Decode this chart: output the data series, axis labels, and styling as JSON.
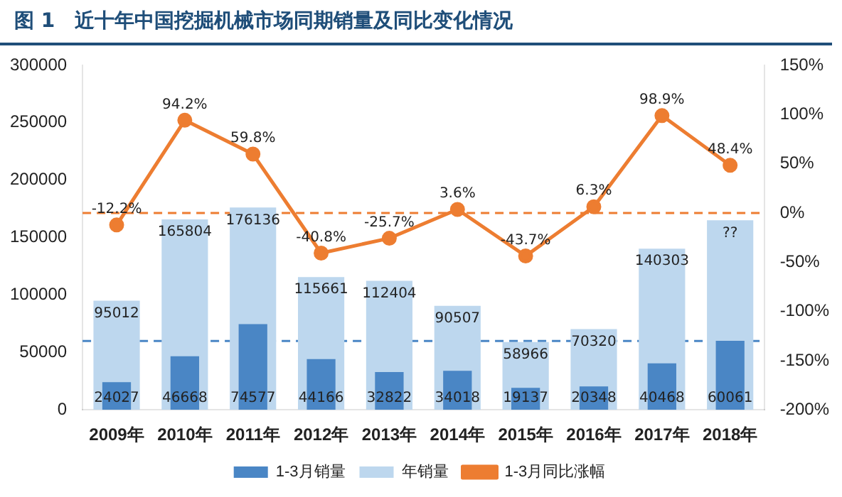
{
  "chart_data": {
    "type": "bar",
    "title": "图 1　近十年中国挖掘机械市场同期销量及同比变化情况",
    "categories": [
      "2009年",
      "2010年",
      "2011年",
      "2012年",
      "2013年",
      "2014年",
      "2015年",
      "2016年",
      "2017年",
      "2018年"
    ],
    "series": [
      {
        "name": "1-3月销量",
        "color": "#4a86c5",
        "values": [
          24027,
          46668,
          74577,
          44166,
          32822,
          34018,
          19137,
          20348,
          40468,
          60061
        ],
        "value_labels": [
          "24027",
          "46668",
          "74577",
          "44166",
          "32822",
          "34018",
          "19137",
          "20348",
          "40468",
          "60061"
        ]
      },
      {
        "name": "年销量",
        "color": "#bdd7ee",
        "values": [
          95012,
          165804,
          176136,
          115661,
          112404,
          90507,
          58966,
          70320,
          140303,
          165000
        ],
        "value_labels": [
          "95012",
          "165804",
          "176136",
          "115661",
          "112404",
          "90507",
          "58966",
          "70320",
          "140303",
          "??"
        ]
      },
      {
        "name": "1-3月同比涨幅",
        "type": "line",
        "axis": "y2",
        "color": "#ed7d31",
        "values": [
          -12.2,
          94.2,
          59.8,
          -40.8,
          -25.7,
          3.6,
          -43.7,
          6.3,
          98.9,
          48.4
        ],
        "value_labels": [
          "-12.2%",
          "94.2%",
          "59.8%",
          "-40.8%",
          "-25.7%",
          "3.6%",
          "-43.7%",
          "6.3%",
          "98.9%",
          "48.4%"
        ]
      }
    ],
    "ylim": [
      0,
      300000
    ],
    "yticks": [
      0,
      50000,
      100000,
      150000,
      200000,
      250000,
      300000
    ],
    "y2lim": [
      -200,
      150
    ],
    "y2ticks": [
      {
        "value": -200,
        "label": "-200%"
      },
      {
        "value": -150,
        "label": "-150%"
      },
      {
        "value": -100,
        "label": "-100%"
      },
      {
        "value": -50,
        "label": "-50%"
      },
      {
        "value": 0,
        "label": "0%"
      },
      {
        "value": 50,
        "label": "50%"
      },
      {
        "value": 100,
        "label": "100%"
      },
      {
        "value": 150,
        "label": "150%"
      }
    ],
    "ref_lines": [
      {
        "axis": "y2",
        "value": 0,
        "color": "#ed7d31",
        "line_style": "dashed"
      },
      {
        "axis": "y",
        "value": 60000,
        "color": "#4a86c5",
        "line_style": "dashed"
      }
    ],
    "marker": "circle",
    "grid": false,
    "legend": "bottom"
  }
}
